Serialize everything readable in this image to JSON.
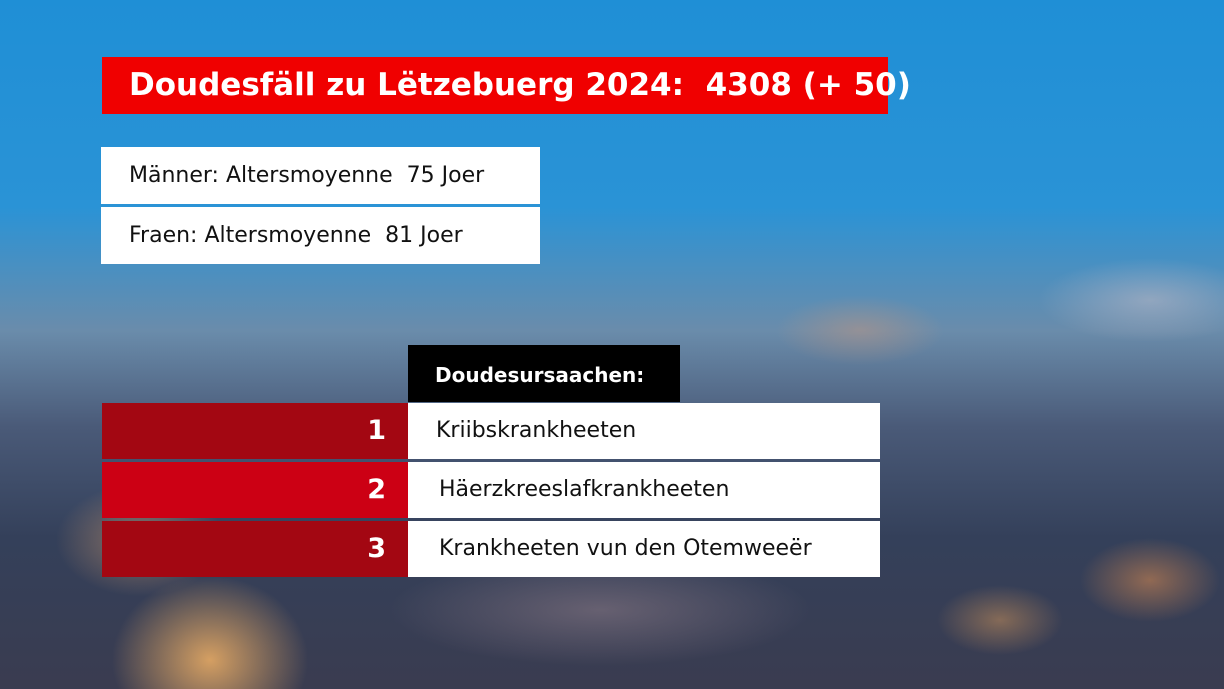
{
  "title": "Doudesfäll zu Lëtzebuerg 2024:  4308 (+ 50)",
  "average_age": [
    {
      "label": "Männer: Altersmoyenne  75 Joer"
    },
    {
      "label": "Fraen: Altersmoyenne  81 Joer"
    }
  ],
  "causes_header": "Doudesursaachen:",
  "causes": [
    {
      "rank": "1",
      "label": "Kriibskrankheeten",
      "color": "#a30712"
    },
    {
      "rank": "2",
      "label": "Häerzkreeslafkrankheeten",
      "color": "#cc0014"
    },
    {
      "rank": "3",
      "label": "Krankheeten vun den Otemweeër",
      "color": "#a30712"
    }
  ],
  "colors": {
    "title_bg": "#f00000",
    "header_bg": "#000000"
  }
}
